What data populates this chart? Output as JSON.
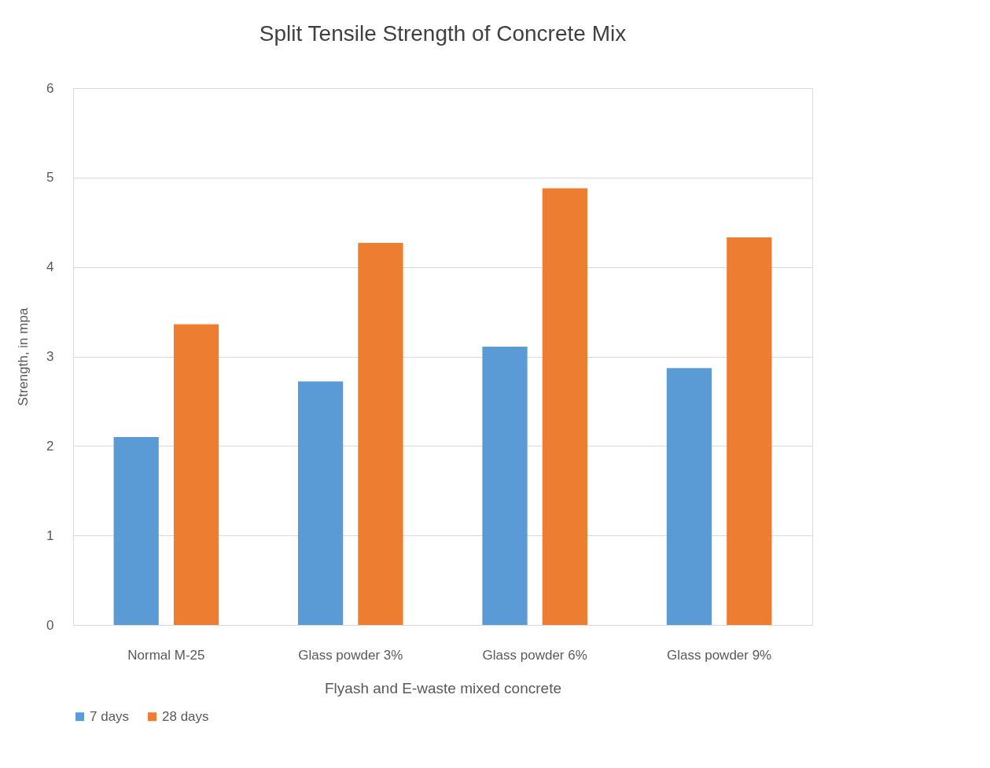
{
  "chart_data": {
    "type": "bar",
    "title": "Split Tensile Strength of Concrete Mix",
    "xlabel": "Flyash and E-waste mixed concrete",
    "ylabel": "Strength, in mpa",
    "categories": [
      "Normal M-25",
      "Glass powder  3%",
      "Glass powder  6%",
      "Glass powder  9%"
    ],
    "series": [
      {
        "name": "7 days",
        "color": "#5b9bd5",
        "values": [
          2.1,
          2.72,
          3.11,
          2.87
        ]
      },
      {
        "name": "28 days",
        "color": "#ed7d31",
        "values": [
          3.36,
          4.27,
          4.88,
          4.33
        ]
      }
    ],
    "ylim": [
      0,
      6
    ],
    "yticks": [
      0,
      1,
      2,
      3,
      4,
      5,
      6
    ],
    "grid": "y",
    "legend": "bottom"
  }
}
